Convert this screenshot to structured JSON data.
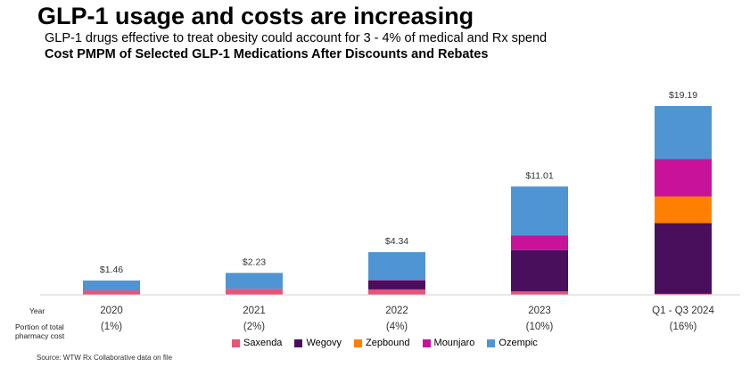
{
  "header": {
    "title": "GLP-1 usage and costs are increasing",
    "subtitle": "GLP-1 drugs effective to treat obesity could account for 3 - 4% of medical and Rx spend"
  },
  "rows": {
    "year_label": "Year",
    "portion_label_line1": "Portion of total",
    "portion_label_line2": "pharmacy cost"
  },
  "source": "Source: WTW Rx Collaborative data on file",
  "chart_data": {
    "type": "bar",
    "stacked": true,
    "title": "Cost PMPM of Selected GLP-1 Medications After Discounts and Rebates",
    "categories": [
      "2020",
      "2021",
      "2022",
      "2023",
      "Q1 - Q3 2024"
    ],
    "portion_of_pharmacy_cost": [
      "(1%)",
      "(2%)",
      "(4%)",
      "(10%)",
      "(16%)"
    ],
    "totals_labels": [
      "$1.46",
      "$2.23",
      "$4.34",
      "$11.01",
      "$19.19"
    ],
    "totals": [
      1.46,
      2.23,
      4.34,
      11.01,
      19.19
    ],
    "ylim": [
      0,
      20
    ],
    "grid": false,
    "legend_position": "bottom",
    "series": [
      {
        "name": "Saxenda",
        "color": "#e8537a",
        "values": [
          0.45,
          0.62,
          0.55,
          0.35,
          0.1
        ]
      },
      {
        "name": "Wegovy",
        "color": "#4a0f5c",
        "values": [
          0,
          0,
          0.9,
          4.2,
          7.2
        ]
      },
      {
        "name": "Zepbound",
        "color": "#ff8000",
        "values": [
          0,
          0,
          0,
          0,
          2.7
        ]
      },
      {
        "name": "Mounjaro",
        "color": "#c8129a",
        "values": [
          0,
          0,
          0.05,
          1.5,
          3.8
        ]
      },
      {
        "name": "Ozempic",
        "color": "#4f95d3",
        "values": [
          1.01,
          1.61,
          2.84,
          4.96,
          5.39
        ]
      }
    ]
  }
}
